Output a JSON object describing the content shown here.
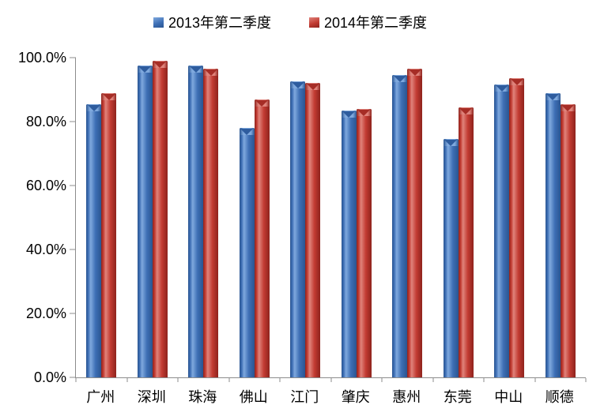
{
  "chart_data": {
    "type": "bar",
    "title": "",
    "xlabel": "",
    "ylabel": "",
    "categories": [
      "广州",
      "深圳",
      "珠海",
      "佛山",
      "江门",
      "肇庆",
      "惠州",
      "东莞",
      "中山",
      "顺德"
    ],
    "series": [
      {
        "name": "2013年第二季度",
        "values": [
          85.5,
          97.5,
          97.5,
          78.0,
          92.5,
          83.5,
          94.5,
          74.5,
          91.5,
          89.0
        ],
        "colors": {
          "main": "#3e6fb5",
          "light": "#7fa9de",
          "dark": "#2a5591",
          "notch": "#2e5c9e"
        }
      },
      {
        "name": "2014年第二季度",
        "values": [
          89.0,
          99.0,
          96.5,
          87.0,
          92.0,
          84.0,
          96.5,
          84.5,
          93.5,
          85.5
        ],
        "colors": {
          "main": "#c23b32",
          "light": "#e0837b",
          "dark": "#8e231d",
          "notch": "#a62d26"
        }
      }
    ],
    "ylim": [
      0,
      100
    ],
    "ytick_step": 20,
    "ytick_labels": [
      "0.0%",
      "20.0%",
      "40.0%",
      "60.0%",
      "80.0%",
      "100.0%"
    ],
    "grid": false,
    "legend_position": "top-center",
    "axis_color": "#8c8c8c",
    "text_color": "#000000"
  }
}
